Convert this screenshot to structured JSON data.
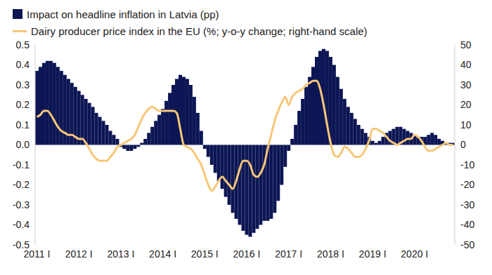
{
  "chart_data": {
    "type": "bar",
    "categories": [
      "2011 I",
      null,
      null,
      null,
      null,
      null,
      null,
      null,
      null,
      null,
      null,
      null,
      "2012 I",
      null,
      null,
      null,
      null,
      null,
      null,
      null,
      null,
      null,
      null,
      null,
      "2013 I",
      null,
      null,
      null,
      null,
      null,
      null,
      null,
      null,
      null,
      null,
      null,
      "2014 I",
      null,
      null,
      null,
      null,
      null,
      null,
      null,
      null,
      null,
      null,
      null,
      "2015 I",
      null,
      null,
      null,
      null,
      null,
      null,
      null,
      null,
      null,
      null,
      null,
      "2016 I",
      null,
      null,
      null,
      null,
      null,
      null,
      null,
      null,
      null,
      null,
      null,
      "2017 I",
      null,
      null,
      null,
      null,
      null,
      null,
      null,
      null,
      null,
      null,
      null,
      "2018 I",
      null,
      null,
      null,
      null,
      null,
      null,
      null,
      null,
      null,
      null,
      null,
      "2019 I",
      null,
      null,
      null,
      null,
      null,
      null,
      null,
      null,
      null,
      null,
      null,
      "2020 I",
      null,
      null,
      null,
      null,
      null,
      null,
      null,
      null,
      null,
      null,
      null
    ],
    "series": [
      {
        "name": "Impact on headline inflation in Latvia (pp)",
        "type": "bar",
        "color": "#0d1654",
        "values": [
          0.37,
          0.39,
          0.41,
          0.42,
          0.42,
          0.41,
          0.39,
          0.37,
          0.35,
          0.33,
          0.31,
          0.29,
          0.27,
          0.25,
          0.23,
          0.21,
          0.19,
          0.16,
          0.14,
          0.12,
          0.1,
          0.07,
          0.05,
          0.03,
          -0.01,
          -0.02,
          -0.03,
          -0.03,
          -0.02,
          -0.01,
          0.01,
          0.03,
          0.06,
          0.09,
          0.12,
          0.15,
          0.18,
          0.22,
          0.26,
          0.3,
          0.33,
          0.35,
          0.34,
          0.33,
          0.3,
          0.24,
          0.16,
          0.07,
          -0.02,
          -0.06,
          -0.1,
          -0.14,
          -0.18,
          -0.22,
          -0.26,
          -0.3,
          -0.34,
          -0.37,
          -0.4,
          -0.43,
          -0.45,
          -0.46,
          -0.44,
          -0.42,
          -0.4,
          -0.38,
          -0.38,
          -0.37,
          -0.34,
          -0.28,
          -0.2,
          -0.11,
          -0.03,
          0.03,
          0.1,
          0.17,
          0.23,
          0.29,
          0.34,
          0.39,
          0.44,
          0.47,
          0.48,
          0.47,
          0.44,
          0.4,
          0.34,
          0.28,
          0.23,
          0.19,
          0.16,
          0.13,
          0.1,
          0.08,
          0.06,
          0.04,
          0.02,
          0.01,
          0.02,
          0.04,
          0.06,
          0.07,
          0.08,
          0.09,
          0.09,
          0.08,
          0.07,
          0.06,
          0.05,
          0.04,
          0.04,
          0.04,
          0.05,
          0.06,
          0.05,
          0.03,
          0.02,
          0.01,
          0.01,
          0.01
        ]
      },
      {
        "name": "Dairy producer price index in the EU (%; y-o-y change; right-hand scale)",
        "type": "line",
        "axis": "y2",
        "color": "#f7c778",
        "values": [
          14,
          15,
          17,
          17,
          15,
          12,
          9,
          7,
          6,
          5,
          5,
          4,
          3,
          3,
          1,
          -2,
          -5,
          -7,
          -8,
          -8,
          -8,
          -6,
          -4,
          -1,
          0,
          1,
          2,
          3,
          5,
          9,
          13,
          16,
          18,
          19,
          18,
          17,
          17,
          17,
          17,
          17,
          16,
          8,
          0,
          -1,
          -2,
          -4,
          -7,
          -10,
          -15,
          -20,
          -23,
          -21,
          -18,
          -16,
          -18,
          -20,
          -22,
          -18,
          -12,
          -8,
          -8,
          -10,
          -15,
          -16,
          -14,
          -10,
          -2,
          5,
          12,
          17,
          21,
          24,
          20,
          24,
          26,
          27,
          28,
          30,
          31,
          32,
          32,
          28,
          20,
          10,
          1,
          -5,
          -6,
          -4,
          -1,
          -2,
          -4,
          -6,
          -6,
          -5,
          -2,
          2,
          8,
          8,
          7,
          6,
          4,
          2,
          1,
          0,
          1,
          2,
          3,
          3,
          5,
          4,
          2,
          -1,
          -3,
          -3,
          -2,
          -1,
          0,
          1,
          0,
          0
        ]
      }
    ],
    "ylim": [
      -0.5,
      0.5
    ],
    "yticks": [
      -0.5,
      -0.4,
      -0.3,
      -0.2,
      -0.1,
      {
        "value": 0,
        "label": "0.0"
      },
      0.1,
      0.2,
      0.3,
      0.4,
      0.5
    ],
    "y2lim": [
      -50,
      50
    ],
    "y2ticks": [
      -50,
      -40,
      -30,
      -20,
      -10,
      0,
      10,
      20,
      30,
      40,
      50
    ],
    "grid": false
  }
}
